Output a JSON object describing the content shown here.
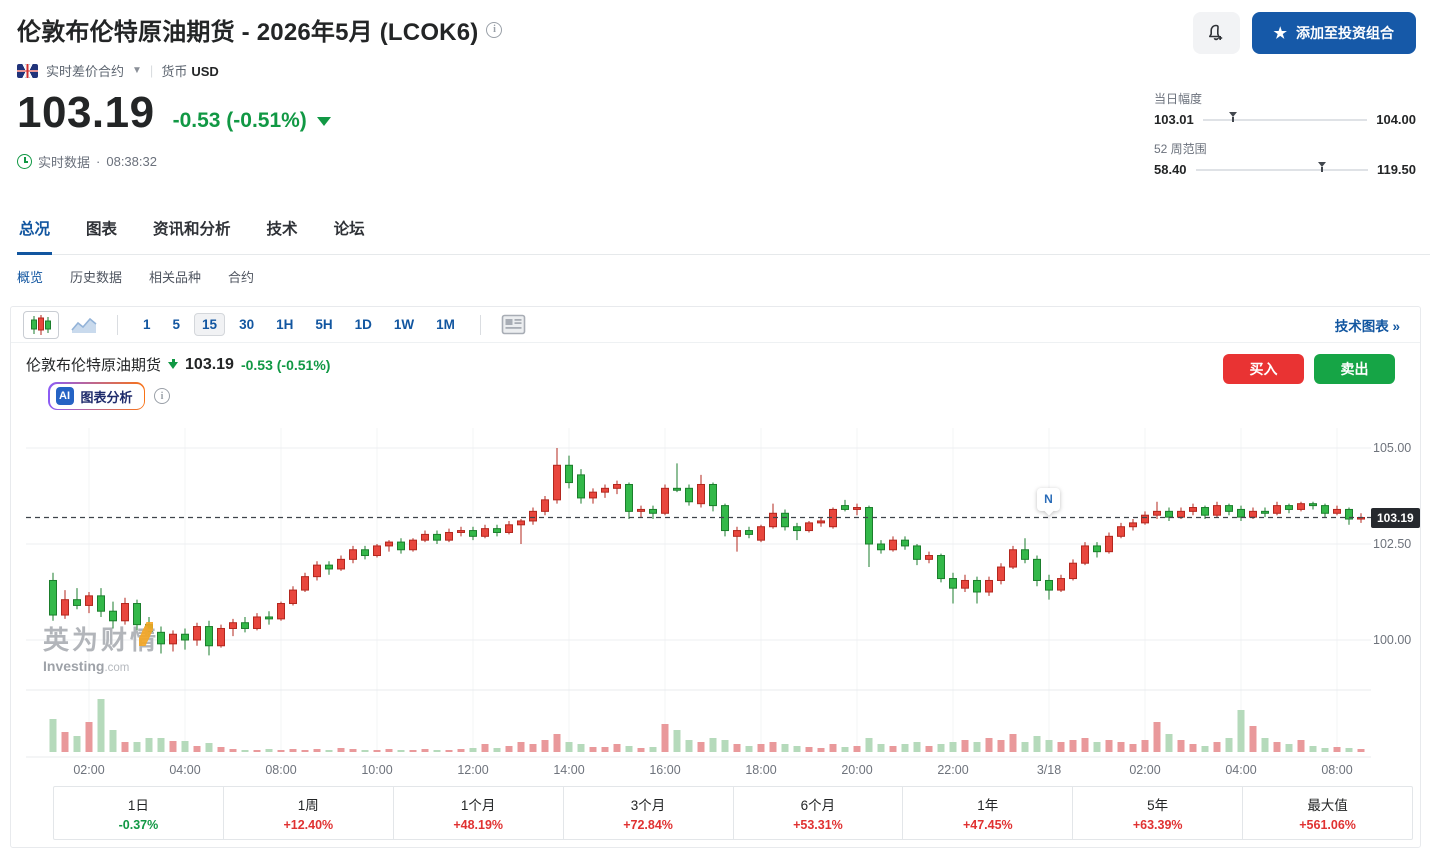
{
  "header": {
    "title": "伦敦布伦特原油期货 - 2026年5月 (LCOK6)",
    "info_icon": "info-icon",
    "alerts_icon": "bell-add-icon",
    "portfolio_button": {
      "star_icon": "star-icon",
      "label": "添加至投资组合"
    }
  },
  "meta": {
    "flag_icon": "uk-flag-icon",
    "cfd_label": "实时差价合约",
    "currency_label": "货币",
    "currency_value": "USD"
  },
  "quote": {
    "price": "103.19",
    "change": "-0.53 (-0.51%)",
    "status": "实时数据",
    "sep": "·",
    "time": "08:38:32",
    "down_color": "#119844",
    "up_color": "#e03232"
  },
  "ranges": {
    "day": {
      "label": "当日幅度",
      "low": "103.01",
      "high": "104.00",
      "pos": 0.182
    },
    "week52": {
      "label": "52 周范围",
      "low": "58.40",
      "high": "119.50",
      "pos": 0.733
    }
  },
  "tabs": [
    {
      "label": "总况",
      "active": true
    },
    {
      "label": "图表",
      "active": false
    },
    {
      "label": "资讯和分析",
      "active": false
    },
    {
      "label": "技术",
      "active": false
    },
    {
      "label": "论坛",
      "active": false
    }
  ],
  "subtabs": [
    {
      "label": "概览",
      "active": true
    },
    {
      "label": "历史数据",
      "active": false
    },
    {
      "label": "相关品种",
      "active": false
    },
    {
      "label": "合约",
      "active": false
    }
  ],
  "toolbar": {
    "candle_icon": "candlestick-chart-icon",
    "area_icon": "area-chart-icon",
    "news_icon": "news-layout-icon",
    "intervals": [
      "1",
      "5",
      "15",
      "30",
      "1H",
      "5H",
      "1D",
      "1W",
      "1M"
    ],
    "selected_interval": "15",
    "tech_link": "技术图表 »"
  },
  "chart_header": {
    "name": "伦敦布伦特原油期货",
    "direction_icon": "arrow-down-icon",
    "price": "103.19",
    "change": "-0.53 (-0.51%)"
  },
  "trade": {
    "buy_label": "买入",
    "sell_label": "卖出"
  },
  "ai": {
    "badge": "AI",
    "label": "图表分析"
  },
  "watermark": {
    "cn": "英为财情",
    "en": "Investing",
    "domain": ".com"
  },
  "chart_data": {
    "type": "candlestick",
    "interval": "15m",
    "convention": "red=up, green=down (CN)",
    "ylim": [
      99.4,
      105.6
    ],
    "y_ticks": [
      {
        "value": 105.0,
        "label": "105.00"
      },
      {
        "value": 102.5,
        "label": "102.50"
      },
      {
        "value": 100.0,
        "label": "100.00"
      }
    ],
    "last_price": 103.19,
    "last_price_label": "103.19",
    "news_marker": {
      "label": "N",
      "index": 83
    },
    "x_labels": [
      {
        "index": 3,
        "label": "02:00"
      },
      {
        "index": 11,
        "label": "04:00"
      },
      {
        "index": 19,
        "label": "08:00"
      },
      {
        "index": 27,
        "label": "10:00"
      },
      {
        "index": 35,
        "label": "12:00"
      },
      {
        "index": 43,
        "label": "14:00"
      },
      {
        "index": 51,
        "label": "16:00"
      },
      {
        "index": 59,
        "label": "18:00"
      },
      {
        "index": 67,
        "label": "20:00"
      },
      {
        "index": 75,
        "label": "22:00"
      },
      {
        "index": 83,
        "label": "3/18"
      },
      {
        "index": 91,
        "label": "02:00"
      },
      {
        "index": 99,
        "label": "04:00"
      },
      {
        "index": 107,
        "label": "08:00"
      }
    ],
    "candle_fields": [
      "open",
      "high",
      "low",
      "close",
      "volume"
    ],
    "candles": [
      [
        101.55,
        101.75,
        100.5,
        100.65,
        33
      ],
      [
        100.65,
        101.3,
        100.55,
        101.05,
        20
      ],
      [
        101.05,
        101.35,
        100.8,
        100.9,
        16
      ],
      [
        100.9,
        101.25,
        100.7,
        101.15,
        30
      ],
      [
        101.15,
        101.35,
        100.6,
        100.75,
        53
      ],
      [
        100.75,
        101.0,
        100.3,
        100.5,
        22
      ],
      [
        100.5,
        101.1,
        100.4,
        100.95,
        10
      ],
      [
        100.95,
        101.05,
        100.25,
        100.4,
        10
      ],
      [
        100.4,
        100.6,
        100.05,
        100.2,
        14
      ],
      [
        100.2,
        100.35,
        99.65,
        99.9,
        14
      ],
      [
        99.9,
        100.25,
        99.7,
        100.15,
        11
      ],
      [
        100.15,
        100.3,
        99.75,
        100.0,
        11
      ],
      [
        100.0,
        100.45,
        99.85,
        100.35,
        6
      ],
      [
        100.35,
        100.5,
        99.6,
        99.85,
        9
      ],
      [
        99.85,
        100.4,
        99.8,
        100.3,
        5
      ],
      [
        100.3,
        100.55,
        100.1,
        100.45,
        3
      ],
      [
        100.45,
        100.6,
        100.2,
        100.3,
        2
      ],
      [
        100.3,
        100.7,
        100.25,
        100.6,
        2
      ],
      [
        100.6,
        100.75,
        100.4,
        100.55,
        3
      ],
      [
        100.55,
        101.0,
        100.5,
        100.95,
        2
      ],
      [
        100.95,
        101.4,
        100.9,
        101.3,
        3
      ],
      [
        101.3,
        101.75,
        101.25,
        101.65,
        2
      ],
      [
        101.65,
        102.05,
        101.55,
        101.95,
        3
      ],
      [
        101.95,
        102.05,
        101.7,
        101.85,
        2
      ],
      [
        101.85,
        102.2,
        101.8,
        102.1,
        4
      ],
      [
        102.1,
        102.45,
        102.0,
        102.35,
        3
      ],
      [
        102.35,
        102.45,
        102.1,
        102.2,
        2
      ],
      [
        102.2,
        102.5,
        102.15,
        102.45,
        2
      ],
      [
        102.45,
        102.6,
        102.3,
        102.55,
        3
      ],
      [
        102.55,
        102.65,
        102.25,
        102.35,
        2
      ],
      [
        102.35,
        102.65,
        102.3,
        102.6,
        2
      ],
      [
        102.6,
        102.85,
        102.55,
        102.75,
        3
      ],
      [
        102.75,
        102.85,
        102.5,
        102.6,
        2
      ],
      [
        102.6,
        102.9,
        102.55,
        102.8,
        2
      ],
      [
        102.8,
        102.95,
        102.7,
        102.85,
        3
      ],
      [
        102.85,
        102.95,
        102.6,
        102.7,
        4
      ],
      [
        102.7,
        103.0,
        102.65,
        102.9,
        8
      ],
      [
        102.9,
        103.0,
        102.7,
        102.8,
        4
      ],
      [
        102.8,
        103.1,
        102.75,
        103.0,
        6
      ],
      [
        103.0,
        103.15,
        102.5,
        103.1,
        10
      ],
      [
        103.1,
        103.45,
        103.0,
        103.35,
        8
      ],
      [
        103.35,
        103.75,
        103.25,
        103.65,
        12
      ],
      [
        103.65,
        105.0,
        103.55,
        104.55,
        18
      ],
      [
        104.55,
        104.8,
        103.95,
        104.1,
        10
      ],
      [
        104.3,
        104.45,
        103.55,
        103.7,
        8
      ],
      [
        103.7,
        103.95,
        103.55,
        103.85,
        5
      ],
      [
        103.85,
        104.05,
        103.7,
        103.95,
        5
      ],
      [
        103.95,
        104.15,
        103.8,
        104.05,
        8
      ],
      [
        104.05,
        104.1,
        103.15,
        103.35,
        6
      ],
      [
        103.35,
        103.5,
        103.2,
        103.4,
        4
      ],
      [
        103.4,
        103.5,
        103.15,
        103.3,
        5
      ],
      [
        103.3,
        104.05,
        103.25,
        103.95,
        28
      ],
      [
        103.95,
        104.6,
        103.85,
        103.9,
        22
      ],
      [
        103.95,
        104.05,
        103.5,
        103.6,
        12
      ],
      [
        103.55,
        104.3,
        103.45,
        104.05,
        10
      ],
      [
        104.05,
        104.1,
        103.35,
        103.5,
        14
      ],
      [
        103.5,
        103.55,
        102.7,
        102.85,
        12
      ],
      [
        102.7,
        102.95,
        102.3,
        102.85,
        8
      ],
      [
        102.85,
        102.95,
        102.65,
        102.75,
        6
      ],
      [
        102.6,
        103.0,
        102.55,
        102.95,
        8
      ],
      [
        102.95,
        103.55,
        102.9,
        103.3,
        10
      ],
      [
        103.3,
        103.4,
        102.85,
        102.95,
        8
      ],
      [
        102.95,
        103.05,
        102.6,
        102.85,
        6
      ],
      [
        102.85,
        103.1,
        102.8,
        103.05,
        5
      ],
      [
        103.05,
        103.2,
        102.95,
        103.1,
        4
      ],
      [
        102.95,
        103.45,
        102.9,
        103.4,
        8
      ],
      [
        103.5,
        103.65,
        103.35,
        103.4,
        5
      ],
      [
        103.4,
        103.55,
        103.25,
        103.45,
        6
      ],
      [
        103.45,
        103.5,
        101.9,
        102.5,
        14
      ],
      [
        102.5,
        102.6,
        102.25,
        102.35,
        8
      ],
      [
        102.35,
        102.7,
        102.3,
        102.6,
        6
      ],
      [
        102.6,
        102.7,
        102.35,
        102.45,
        8
      ],
      [
        102.45,
        102.5,
        101.95,
        102.1,
        10
      ],
      [
        102.1,
        102.3,
        102.0,
        102.2,
        6
      ],
      [
        102.2,
        102.25,
        101.5,
        101.6,
        8
      ],
      [
        101.6,
        101.75,
        100.95,
        101.35,
        10
      ],
      [
        101.35,
        101.7,
        101.25,
        101.55,
        12
      ],
      [
        101.55,
        101.65,
        100.95,
        101.25,
        10
      ],
      [
        101.25,
        101.65,
        101.15,
        101.55,
        14
      ],
      [
        101.55,
        102.0,
        101.45,
        101.9,
        12
      ],
      [
        101.9,
        102.45,
        101.85,
        102.35,
        18
      ],
      [
        102.35,
        102.65,
        102.0,
        102.1,
        10
      ],
      [
        102.1,
        102.2,
        101.4,
        101.55,
        16
      ],
      [
        101.55,
        101.7,
        101.05,
        101.3,
        12
      ],
      [
        101.3,
        101.7,
        101.25,
        101.6,
        10
      ],
      [
        101.6,
        102.1,
        101.55,
        102.0,
        12
      ],
      [
        102.0,
        102.55,
        101.95,
        102.45,
        14
      ],
      [
        102.45,
        102.55,
        102.15,
        102.3,
        10
      ],
      [
        102.3,
        102.8,
        102.25,
        102.7,
        12
      ],
      [
        102.7,
        103.05,
        102.65,
        102.95,
        10
      ],
      [
        102.95,
        103.15,
        102.85,
        103.05,
        8
      ],
      [
        103.05,
        103.35,
        103.0,
        103.25,
        12
      ],
      [
        103.25,
        103.6,
        103.15,
        103.35,
        30
      ],
      [
        103.35,
        103.45,
        103.1,
        103.2,
        18
      ],
      [
        103.2,
        103.45,
        103.15,
        103.35,
        12
      ],
      [
        103.35,
        103.55,
        103.25,
        103.45,
        8
      ],
      [
        103.45,
        103.5,
        103.15,
        103.25,
        6
      ],
      [
        103.25,
        103.6,
        103.2,
        103.5,
        10
      ],
      [
        103.5,
        103.55,
        103.25,
        103.35,
        14
      ],
      [
        103.4,
        103.5,
        103.1,
        103.2,
        42
      ],
      [
        103.2,
        103.45,
        103.15,
        103.35,
        26
      ],
      [
        103.35,
        103.45,
        103.2,
        103.3,
        14
      ],
      [
        103.3,
        103.6,
        103.25,
        103.5,
        10
      ],
      [
        103.5,
        103.55,
        103.3,
        103.4,
        8
      ],
      [
        103.4,
        103.6,
        103.35,
        103.55,
        12
      ],
      [
        103.55,
        103.6,
        103.4,
        103.5,
        6
      ],
      [
        103.5,
        103.55,
        103.2,
        103.3,
        4
      ],
      [
        103.3,
        103.5,
        103.25,
        103.4,
        5
      ],
      [
        103.4,
        103.45,
        103.0,
        103.15,
        4
      ],
      [
        103.15,
        103.3,
        103.05,
        103.19,
        3
      ]
    ],
    "colors": {
      "up_fill": "#e8463d",
      "up_stroke": "#b3271e",
      "down_fill": "#33b849",
      "down_stroke": "#1b7e2c",
      "vol_up": "#e9999b",
      "vol_down": "#b5dabb",
      "grid": "#f3f4f6",
      "grid_h": "#edeff2",
      "pane_border": "#e8ebee",
      "last_price_line": "#3f444b"
    }
  },
  "performance": {
    "items": [
      {
        "label": "1日",
        "value": "-0.37%",
        "trend": "down"
      },
      {
        "label": "1周",
        "value": "+12.40%",
        "trend": "up"
      },
      {
        "label": "1个月",
        "value": "+48.19%",
        "trend": "up"
      },
      {
        "label": "3个月",
        "value": "+72.84%",
        "trend": "up"
      },
      {
        "label": "6个月",
        "value": "+53.31%",
        "trend": "up"
      },
      {
        "label": "1年",
        "value": "+47.45%",
        "trend": "up"
      },
      {
        "label": "5年",
        "value": "+63.39%",
        "trend": "up"
      },
      {
        "label": "最大值",
        "value": "+561.06%",
        "trend": "up"
      }
    ]
  }
}
